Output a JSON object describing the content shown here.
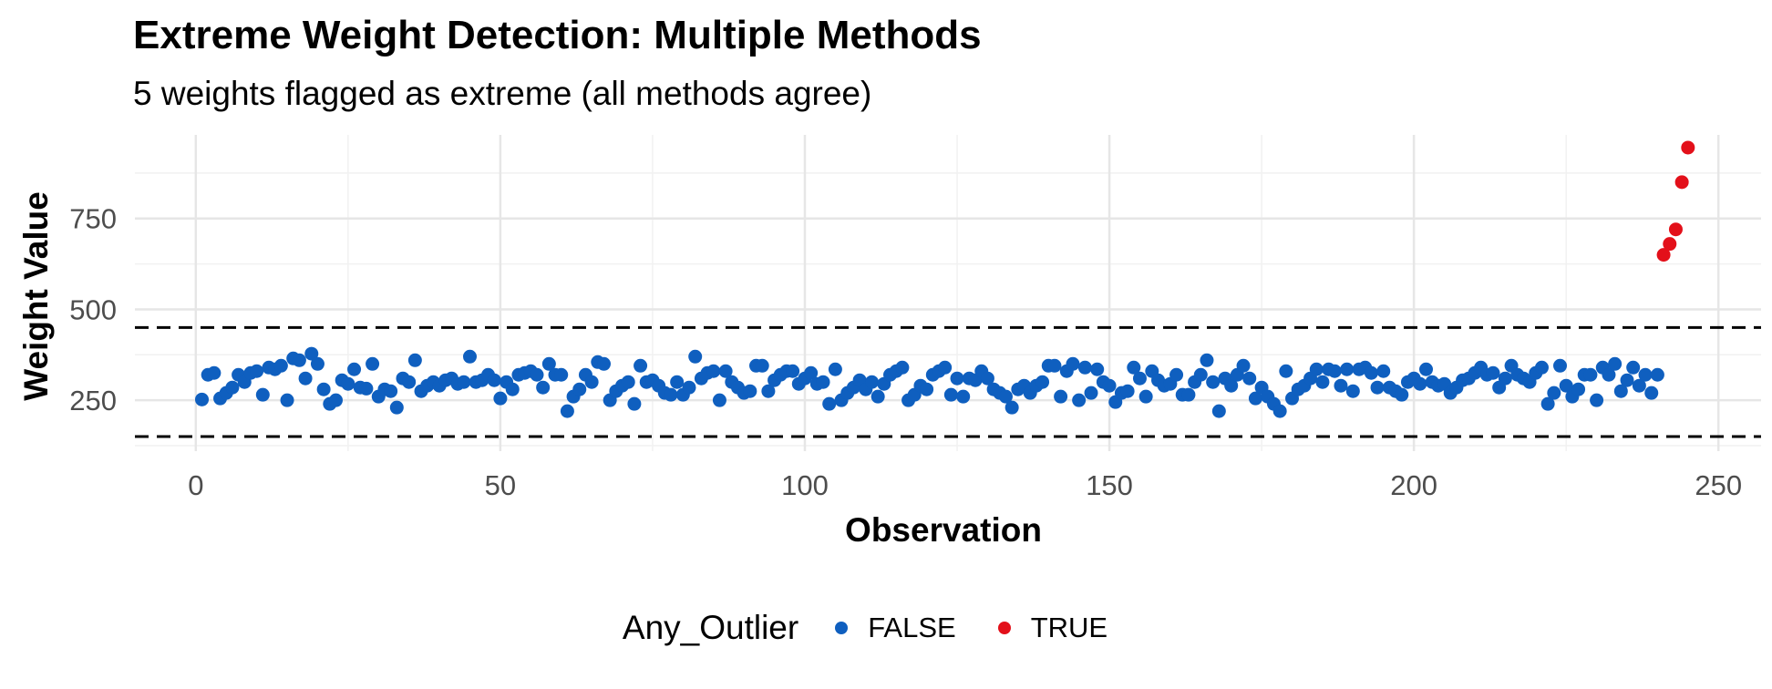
{
  "chart_data": {
    "type": "scatter",
    "title": "Extreme Weight Detection: Multiple Methods",
    "subtitle": "5 weights flagged as extreme (all methods agree)",
    "xlabel": "Observation",
    "ylabel": "Weight Value",
    "xlim": [
      -10,
      257
    ],
    "ylim": [
      110,
      980
    ],
    "x_ticks": [
      0,
      50,
      100,
      150,
      200,
      250
    ],
    "y_ticks": [
      250,
      500,
      750
    ],
    "grid": true,
    "reference_lines": [
      {
        "style": "dashed",
        "y": 150
      },
      {
        "style": "dashed",
        "y": 450
      }
    ],
    "legend": {
      "title": "Any_Outlier",
      "position": "bottom",
      "entries": [
        {
          "label": "FALSE",
          "color": "#0f5fbf"
        },
        {
          "label": "TRUE",
          "color": "#e3101a"
        }
      ]
    },
    "series": [
      {
        "name": "FALSE",
        "color": "#0f5fbf",
        "x": [
          1,
          2,
          3,
          4,
          5,
          6,
          7,
          8,
          9,
          10,
          11,
          12,
          13,
          14,
          15,
          16,
          17,
          18,
          19,
          20,
          21,
          22,
          23,
          24,
          25,
          26,
          27,
          28,
          29,
          30,
          31,
          32,
          33,
          34,
          35,
          36,
          37,
          38,
          39,
          40,
          41,
          42,
          43,
          44,
          45,
          46,
          47,
          48,
          49,
          50,
          51,
          52,
          53,
          54,
          55,
          56,
          57,
          58,
          59,
          60,
          61,
          62,
          63,
          64,
          65,
          66,
          67,
          68,
          69,
          70,
          71,
          72,
          73,
          74,
          75,
          76,
          77,
          78,
          79,
          80,
          81,
          82,
          83,
          84,
          85,
          86,
          87,
          88,
          89,
          90,
          91,
          92,
          93,
          94,
          95,
          96,
          97,
          98,
          99,
          100,
          101,
          102,
          103,
          104,
          105,
          106,
          107,
          108,
          109,
          110,
          111,
          112,
          113,
          114,
          115,
          116,
          117,
          118,
          119,
          120,
          121,
          122,
          123,
          124,
          125,
          126,
          127,
          128,
          129,
          130,
          131,
          132,
          133,
          134,
          135,
          136,
          137,
          138,
          139,
          140,
          141,
          142,
          143,
          144,
          145,
          146,
          147,
          148,
          149,
          150,
          151,
          152,
          153,
          154,
          155,
          156,
          157,
          158,
          159,
          160,
          161,
          162,
          163,
          164,
          165,
          166,
          167,
          168,
          169,
          170,
          171,
          172,
          173,
          174,
          175,
          176,
          177,
          178,
          179,
          180,
          181,
          182,
          183,
          184,
          185,
          186,
          187,
          188,
          189,
          190,
          191,
          192,
          193,
          194,
          195,
          196,
          197,
          198,
          199,
          200,
          201,
          202,
          203,
          204,
          205,
          206,
          207,
          208,
          209,
          210,
          211,
          212,
          213,
          214,
          215,
          216,
          217,
          218,
          219,
          220,
          221,
          222,
          223,
          224,
          225,
          226,
          227,
          228,
          229,
          230,
          231,
          232,
          233,
          234,
          235,
          236,
          237,
          238,
          239,
          240
        ],
        "y": [
          252,
          320,
          325,
          255,
          270,
          285,
          320,
          300,
          325,
          330,
          265,
          340,
          335,
          345,
          250,
          365,
          360,
          310,
          378,
          350,
          280,
          240,
          250,
          305,
          295,
          335,
          285,
          282,
          350,
          260,
          280,
          275,
          230,
          310,
          300,
          360,
          275,
          290,
          300,
          290,
          305,
          310,
          295,
          300,
          370,
          300,
          305,
          320,
          305,
          255,
          300,
          280,
          320,
          325,
          330,
          320,
          285,
          350,
          320,
          320,
          220,
          260,
          280,
          320,
          300,
          355,
          350,
          250,
          275,
          290,
          300,
          240,
          345,
          300,
          305,
          290,
          270,
          265,
          300,
          265,
          285,
          370,
          310,
          325,
          330,
          250,
          330,
          300,
          285,
          270,
          275,
          345,
          345,
          275,
          305,
          320,
          330,
          330,
          295,
          310,
          325,
          295,
          300,
          240,
          335,
          250,
          270,
          285,
          305,
          280,
          300,
          260,
          295,
          320,
          330,
          340,
          250,
          265,
          290,
          280,
          320,
          330,
          340,
          265,
          310,
          260,
          310,
          305,
          330,
          310,
          280,
          270,
          260,
          230,
          280,
          290,
          270,
          290,
          300,
          345,
          345,
          260,
          330,
          350,
          250,
          340,
          270,
          335,
          300,
          290,
          245,
          270,
          275,
          340,
          310,
          260,
          330,
          305,
          290,
          295,
          320,
          265,
          265,
          300,
          320,
          360,
          300,
          220,
          310,
          290,
          320,
          345,
          310,
          255,
          285,
          260,
          240,
          220,
          330,
          255,
          280,
          290,
          310,
          335,
          300,
          335,
          330,
          290,
          335,
          275,
          335,
          340,
          325,
          285,
          330,
          285,
          275,
          265,
          300,
          310,
          295,
          335,
          300,
          290,
          295,
          270,
          285,
          305,
          310,
          325,
          340,
          320,
          325,
          285,
          310,
          345,
          320,
          310,
          300,
          325,
          340,
          240,
          270,
          345,
          290,
          260,
          280,
          320,
          320,
          250,
          340,
          320,
          350,
          275,
          305,
          340,
          290,
          320,
          270,
          320
        ]
      },
      {
        "name": "TRUE",
        "color": "#e3101a",
        "x": [
          241,
          242,
          243,
          244,
          245
        ],
        "y": [
          650,
          680,
          720,
          850,
          945
        ]
      }
    ]
  }
}
